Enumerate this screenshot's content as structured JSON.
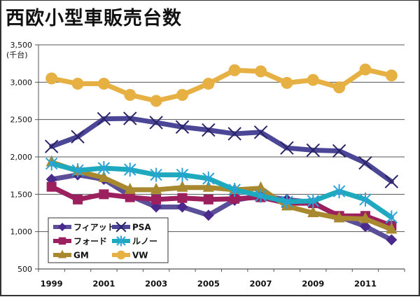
{
  "chart_data": {
    "type": "line",
    "title": "西欧小型車販売台数",
    "ylabel": "(千台)",
    "xlabel": "",
    "ylim": [
      500,
      3500
    ],
    "yticks": [
      500,
      1000,
      1500,
      2000,
      2500,
      3000,
      3500
    ],
    "ytick_labels": [
      "500",
      "1,000",
      "1,500",
      "2,000",
      "2,500",
      "3,000",
      "3,500"
    ],
    "categories": [
      "1999",
      "2000",
      "2001",
      "2002",
      "2003",
      "2004",
      "2005",
      "2006",
      "2007",
      "2008",
      "2009",
      "2010",
      "2011",
      "2012"
    ],
    "xtick_labels": [
      "1999",
      "2001",
      "2003",
      "2005",
      "2007",
      "2009",
      "2011"
    ],
    "grid": "horizontal",
    "legend_position": "bottom-left",
    "series": [
      {
        "name": "フィアット",
        "color": "#5b4f9a",
        "marker_color": "#4a2a8c",
        "marker": "diamond",
        "values": [
          1700,
          1760,
          1700,
          1480,
          1330,
          1330,
          1220,
          1420,
          1480,
          1430,
          1390,
          1200,
          1070,
          890
        ]
      },
      {
        "name": "PSA",
        "color": "#4c4697",
        "marker_color": "#2a2366",
        "marker": "x",
        "values": [
          2140,
          2270,
          2510,
          2515,
          2460,
          2400,
          2360,
          2310,
          2330,
          2120,
          2090,
          2080,
          1920,
          1670
        ]
      },
      {
        "name": "フォード",
        "color": "#9c1f5e",
        "marker_color": "#9c1f5e",
        "marker": "square",
        "values": [
          1600,
          1430,
          1500,
          1460,
          1430,
          1450,
          1430,
          1440,
          1460,
          1380,
          1380,
          1210,
          1210,
          1080
        ]
      },
      {
        "name": "ルノー",
        "color": "#1fa9bf",
        "marker_color": "#2aa3d6",
        "marker": "asterisk",
        "values": [
          1910,
          1820,
          1850,
          1830,
          1760,
          1760,
          1710,
          1560,
          1480,
          1400,
          1410,
          1540,
          1430,
          1190
        ]
      },
      {
        "name": "GM",
        "color": "#a8892f",
        "marker_color": "#a8892f",
        "marker": "triangle",
        "values": [
          1930,
          1810,
          1720,
          1560,
          1560,
          1590,
          1590,
          1560,
          1580,
          1340,
          1250,
          1180,
          1170,
          1030
        ]
      },
      {
        "name": "VW",
        "color": "#e6b043",
        "marker_color": "#e6b043",
        "marker": "circle",
        "values": [
          3050,
          2980,
          2980,
          2830,
          2750,
          2830,
          2980,
          3160,
          3145,
          2990,
          3030,
          2930,
          3170,
          3090
        ]
      }
    ]
  }
}
